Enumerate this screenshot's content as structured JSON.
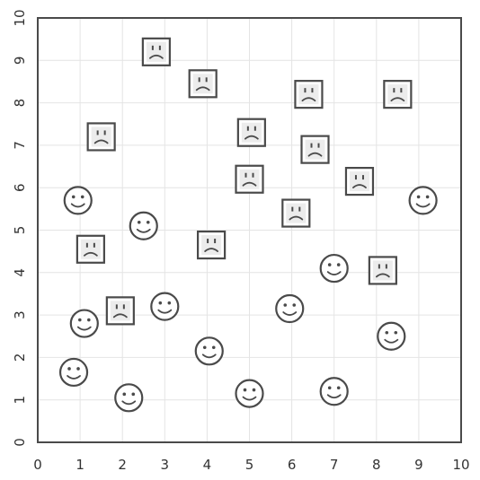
{
  "chart_data": {
    "type": "scatter",
    "title": "",
    "xlabel": "",
    "ylabel": "",
    "xlim": [
      0,
      10
    ],
    "ylim": [
      0,
      10
    ],
    "grid": true,
    "x_ticks": [
      "0",
      "1",
      "2",
      "3",
      "4",
      "5",
      "6",
      "7",
      "8",
      "9",
      "10"
    ],
    "y_ticks": [
      "0",
      "1",
      "2",
      "3",
      "4",
      "5",
      "6",
      "7",
      "8",
      "9",
      "10"
    ],
    "colors": {
      "marker_stroke": "#4a4a4a",
      "marker_fill": "#ffffff",
      "box_fill": "#ececec"
    },
    "series": [
      {
        "marker": "smiley-circle-icon",
        "points": [
          {
            "x": 0.95,
            "y": 5.7
          },
          {
            "x": 2.5,
            "y": 5.1
          },
          {
            "x": 1.1,
            "y": 2.8
          },
          {
            "x": 3.0,
            "y": 3.2
          },
          {
            "x": 0.85,
            "y": 1.65
          },
          {
            "x": 2.15,
            "y": 1.05
          },
          {
            "x": 4.05,
            "y": 2.15
          },
          {
            "x": 5.0,
            "y": 1.15
          },
          {
            "x": 5.95,
            "y": 3.15
          },
          {
            "x": 7.0,
            "y": 4.1
          },
          {
            "x": 7.0,
            "y": 1.2
          },
          {
            "x": 8.35,
            "y": 2.5
          },
          {
            "x": 9.1,
            "y": 5.7
          }
        ]
      },
      {
        "marker": "frown-square-icon",
        "points": [
          {
            "x": 2.8,
            "y": 9.2
          },
          {
            "x": 3.9,
            "y": 8.45
          },
          {
            "x": 6.4,
            "y": 8.2
          },
          {
            "x": 8.5,
            "y": 8.2
          },
          {
            "x": 1.5,
            "y": 7.2
          },
          {
            "x": 5.05,
            "y": 7.3
          },
          {
            "x": 6.55,
            "y": 6.9
          },
          {
            "x": 5.0,
            "y": 6.2
          },
          {
            "x": 7.6,
            "y": 6.15
          },
          {
            "x": 6.1,
            "y": 5.4
          },
          {
            "x": 1.25,
            "y": 4.55
          },
          {
            "x": 4.1,
            "y": 4.65
          },
          {
            "x": 8.15,
            "y": 4.05
          },
          {
            "x": 1.95,
            "y": 3.1
          }
        ]
      }
    ]
  }
}
